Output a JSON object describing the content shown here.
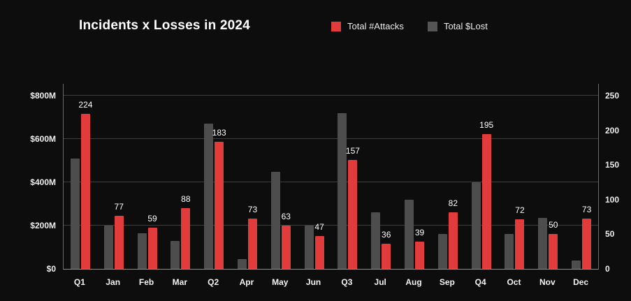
{
  "title": "Incidents x Losses in 2024",
  "legend": {
    "items": [
      {
        "label": "Total #Attacks",
        "color": "#e23b3b"
      },
      {
        "label": "Total $Lost",
        "color": "#555555"
      }
    ]
  },
  "chart_data": {
    "type": "bar",
    "title": "Incidents x Losses in 2024",
    "legend_position": "top",
    "grid": true,
    "background": "#0d0d0d",
    "categories": [
      "Q1",
      "Jan",
      "Feb",
      "Mar",
      "Q2",
      "Apr",
      "May",
      "Jun",
      "Q3",
      "Jul",
      "Aug",
      "Sep",
      "Q4",
      "Oct",
      "Nov",
      "Dec"
    ],
    "series": [
      {
        "name": "Total $Lost",
        "axis": "left",
        "color": "#4d4d4d",
        "unit": "$M",
        "values_estimated": true,
        "values": [
          510,
          200,
          165,
          130,
          670,
          45,
          450,
          200,
          720,
          260,
          320,
          160,
          400,
          160,
          235,
          40
        ]
      },
      {
        "name": "Total #Attacks",
        "axis": "right",
        "color": "#e23b3b",
        "data_labels": true,
        "values": [
          224,
          77,
          59,
          88,
          183,
          73,
          63,
          47,
          157,
          36,
          39,
          82,
          195,
          72,
          50,
          73
        ]
      }
    ],
    "left_axis": {
      "max": 800,
      "min": 0,
      "ticks": [
        {
          "label": "$800M",
          "value": 800
        },
        {
          "label": "$600M",
          "value": 600
        },
        {
          "label": "$400M",
          "value": 400
        },
        {
          "label": "$200M",
          "value": 200
        },
        {
          "label": "$0",
          "value": 0
        }
      ]
    },
    "right_axis": {
      "max": 250,
      "min": 0,
      "ticks": [
        {
          "label": "250",
          "value": 250
        },
        {
          "label": "200",
          "value": 200
        },
        {
          "label": "150",
          "value": 150
        },
        {
          "label": "100",
          "value": 100
        },
        {
          "label": "50",
          "value": 50
        },
        {
          "label": "0",
          "value": 0
        }
      ]
    }
  }
}
